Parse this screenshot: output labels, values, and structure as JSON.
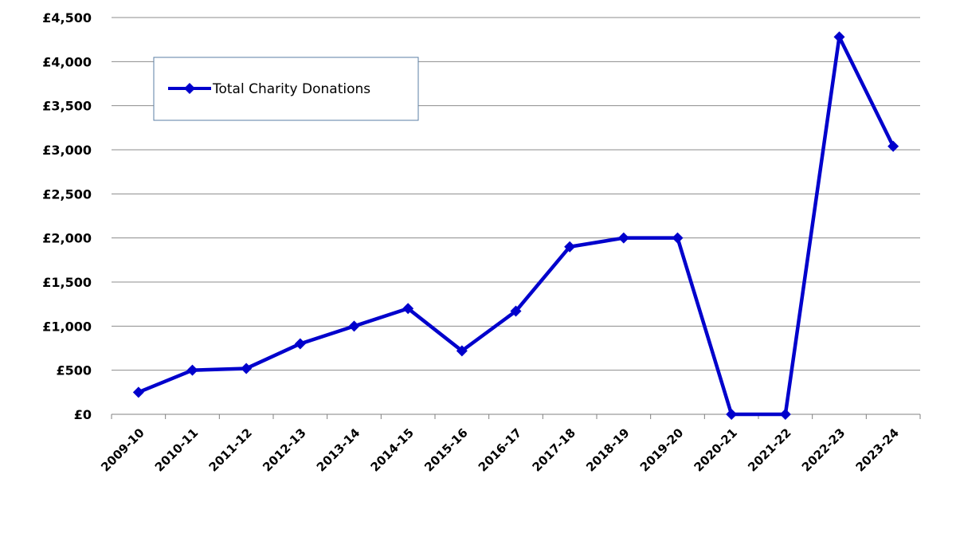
{
  "chart_data": {
    "type": "line",
    "categories": [
      "2009-10",
      "2010-11",
      "2011-12",
      "2012-13",
      "2013-14",
      "2014-15",
      "2015-16",
      "2016-17",
      "2017-18",
      "2018-19",
      "2019-20",
      "2020-21",
      "2021-22",
      "2022-23",
      "2023-24"
    ],
    "series": [
      {
        "name": "Total Charity Donations",
        "color": "#0000CC",
        "marker": "diamond",
        "values": [
          250,
          500,
          520,
          800,
          1000,
          1200,
          720,
          1170,
          1900,
          2000,
          2000,
          0,
          0,
          4280,
          3040
        ]
      }
    ],
    "yticks": [
      "£0",
      "£500",
      "£1,000",
      "£1,500",
      "£2,000",
      "£2,500",
      "£3,000",
      "£3,500",
      "£4,000",
      "£4,500"
    ],
    "ytick_values": [
      0,
      500,
      1000,
      1500,
      2000,
      2500,
      3000,
      3500,
      4000,
      4500
    ],
    "ylim": [
      0,
      4500
    ],
    "grid": true,
    "legend_position": "top-left",
    "title": "",
    "xlabel": "",
    "ylabel": ""
  }
}
